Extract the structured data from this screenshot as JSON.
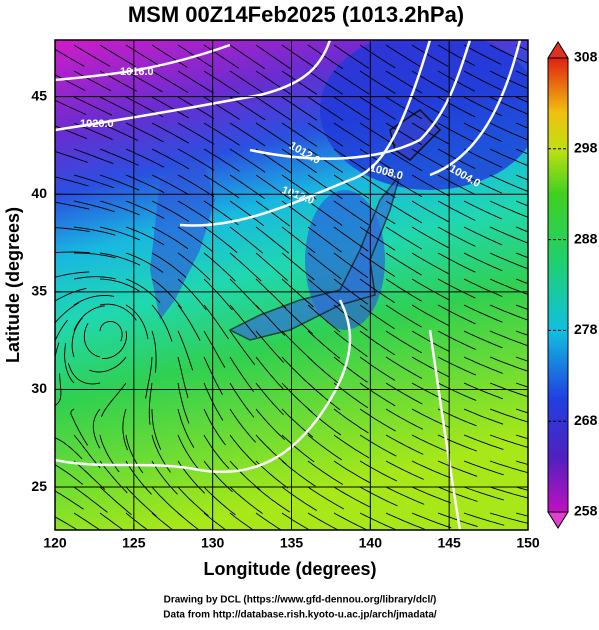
{
  "chart_data": {
    "type": "map",
    "title": "MSM 00Z14Feb2025 (1013.2hPa)",
    "x_label": "Longitude (degrees)",
    "y_label": "Latitude  (degrees)",
    "xlim": [
      120,
      150
    ],
    "xticks": [
      120,
      125,
      130,
      135,
      140,
      145,
      150
    ],
    "ylim": [
      22.8,
      47.9
    ],
    "yticks": [
      25,
      30,
      35,
      40,
      45
    ],
    "grid": true,
    "colorbar": {
      "lim": [
        258,
        308
      ],
      "ticks": [
        258,
        268,
        278,
        288,
        298,
        308
      ]
    },
    "contour_labels": [
      "1016.0",
      "1020.0",
      "1012.0",
      "1008.0",
      "1004.0",
      "1012.0"
    ],
    "credits": [
      "Drawing by DCL (https://www.gfd-dennou.org/library/dcl/)",
      "Data from http://database.rish.kyoto-u.ac.jp/arch/jmadata/"
    ]
  }
}
